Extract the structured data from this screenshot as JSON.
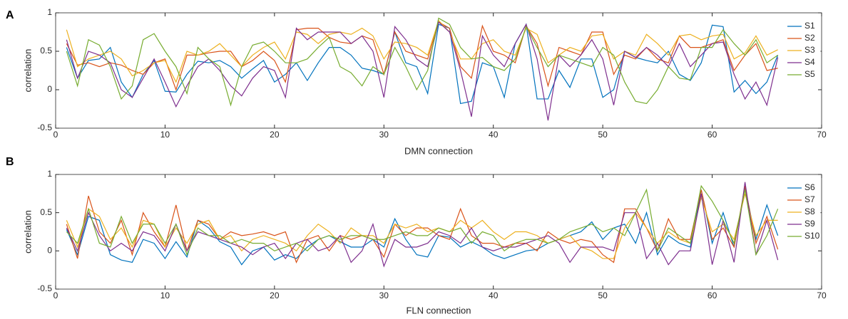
{
  "chart_data": [
    {
      "type": "line",
      "panel_label": "A",
      "xlabel": "DMN connection",
      "ylabel": "correlation",
      "xlim": [
        0,
        70
      ],
      "xticks": [
        0,
        10,
        20,
        30,
        40,
        50,
        60,
        70
      ],
      "ylim": [
        -0.5,
        1
      ],
      "yticks": [
        -0.5,
        0,
        0.5,
        1
      ],
      "legend": "right",
      "x": [
        1,
        2,
        3,
        4,
        5,
        6,
        7,
        8,
        9,
        10,
        11,
        12,
        13,
        14,
        15,
        16,
        17,
        18,
        19,
        20,
        21,
        22,
        23,
        24,
        25,
        26,
        27,
        28,
        29,
        30,
        31,
        32,
        33,
        34,
        35,
        36,
        37,
        38,
        39,
        40,
        41,
        42,
        43,
        44,
        45,
        46,
        47,
        48,
        49,
        50,
        51,
        52,
        53,
        54,
        55,
        56,
        57,
        58,
        59,
        60,
        61,
        62,
        63,
        64,
        65,
        66
      ],
      "series": [
        {
          "name": "S1",
          "color": "#0072BD",
          "values": [
            0.55,
            0.15,
            0.38,
            0.4,
            0.55,
            0.1,
            -0.1,
            0.2,
            0.38,
            -0.02,
            -0.03,
            0.2,
            0.37,
            0.35,
            0.38,
            0.3,
            0.15,
            0.27,
            0.38,
            0.1,
            0.2,
            0.35,
            0.12,
            0.35,
            0.55,
            0.55,
            0.45,
            0.28,
            0.25,
            0.2,
            0.75,
            0.35,
            0.3,
            -0.05,
            0.85,
            0.8,
            -0.18,
            -0.15,
            0.35,
            0.3,
            -0.1,
            0.6,
            0.85,
            -0.12,
            -0.12,
            0.25,
            0.03,
            0.4,
            0.4,
            -0.1,
            0.0,
            0.5,
            0.42,
            0.38,
            0.35,
            0.5,
            0.2,
            0.12,
            0.35,
            0.84,
            0.82,
            -0.03,
            0.12,
            -0.05,
            0.1,
            0.45
          ]
        },
        {
          "name": "S2",
          "color": "#D95319",
          "values": [
            0.6,
            0.32,
            0.35,
            0.3,
            0.35,
            0.32,
            0.25,
            0.2,
            0.35,
            0.4,
            0.0,
            0.45,
            0.45,
            0.48,
            0.5,
            0.5,
            0.3,
            0.38,
            0.5,
            0.38,
            0.1,
            0.78,
            0.8,
            0.8,
            0.68,
            0.62,
            0.6,
            0.7,
            0.65,
            0.2,
            0.75,
            0.5,
            0.45,
            0.4,
            0.88,
            0.8,
            0.3,
            0.15,
            0.83,
            0.5,
            0.45,
            0.35,
            0.83,
            0.6,
            0.05,
            0.55,
            0.5,
            0.45,
            0.75,
            0.75,
            0.2,
            0.45,
            0.4,
            0.55,
            0.4,
            0.35,
            0.7,
            0.55,
            0.55,
            0.6,
            0.65,
            0.25,
            0.45,
            0.6,
            0.25,
            0.28
          ]
        },
        {
          "name": "S3",
          "color": "#EDB120",
          "values": [
            0.78,
            0.3,
            0.4,
            0.45,
            0.5,
            0.4,
            0.18,
            0.25,
            0.35,
            0.38,
            0.1,
            0.5,
            0.45,
            0.5,
            0.6,
            0.45,
            0.3,
            0.45,
            0.55,
            0.62,
            0.4,
            0.75,
            0.72,
            0.6,
            0.72,
            0.75,
            0.72,
            0.8,
            0.7,
            0.4,
            0.62,
            0.6,
            0.55,
            0.45,
            0.9,
            0.75,
            0.4,
            0.4,
            0.6,
            0.65,
            0.5,
            0.45,
            0.8,
            0.72,
            0.35,
            0.45,
            0.55,
            0.5,
            0.7,
            0.72,
            0.4,
            0.5,
            0.45,
            0.72,
            0.6,
            0.45,
            0.7,
            0.72,
            0.65,
            0.7,
            0.72,
            0.4,
            0.48,
            0.7,
            0.45,
            0.52
          ]
        },
        {
          "name": "S4",
          "color": "#7E2F8E",
          "values": [
            0.65,
            0.15,
            0.5,
            0.45,
            0.35,
            0.0,
            -0.1,
            0.15,
            0.4,
            0.1,
            -0.22,
            0.05,
            0.3,
            0.4,
            0.25,
            0.05,
            -0.08,
            0.15,
            0.3,
            0.25,
            -0.1,
            0.8,
            0.65,
            0.75,
            0.75,
            0.75,
            0.6,
            0.7,
            0.5,
            -0.1,
            0.82,
            0.65,
            0.4,
            0.3,
            0.88,
            0.75,
            0.25,
            -0.35,
            0.7,
            0.45,
            0.3,
            0.6,
            0.85,
            0.4,
            -0.4,
            0.45,
            0.3,
            0.45,
            0.65,
            0.4,
            -0.2,
            0.5,
            0.42,
            0.55,
            0.45,
            0.3,
            0.6,
            0.3,
            0.45,
            0.6,
            0.62,
            0.2,
            -0.12,
            0.1,
            -0.2,
            0.42
          ]
        },
        {
          "name": "S5",
          "color": "#77AC30",
          "values": [
            0.5,
            0.05,
            0.65,
            0.58,
            0.3,
            -0.12,
            0.05,
            0.65,
            0.73,
            0.5,
            0.3,
            -0.05,
            0.55,
            0.4,
            0.3,
            -0.2,
            0.3,
            0.58,
            0.62,
            0.5,
            0.35,
            0.35,
            0.4,
            0.55,
            0.68,
            0.3,
            0.22,
            0.05,
            0.3,
            0.2,
            0.55,
            0.3,
            0.0,
            0.25,
            0.93,
            0.85,
            0.55,
            0.4,
            0.42,
            0.3,
            0.25,
            0.4,
            0.82,
            0.55,
            0.3,
            0.45,
            0.4,
            0.35,
            0.3,
            0.55,
            0.45,
            0.1,
            -0.15,
            -0.18,
            0.0,
            0.3,
            0.15,
            0.13,
            0.55,
            0.55,
            0.78,
            0.6,
            0.45,
            0.65,
            0.35,
            0.45
          ]
        }
      ]
    },
    {
      "type": "line",
      "panel_label": "B",
      "xlabel": "FLN connection",
      "ylabel": "correlation",
      "xlim": [
        0,
        70
      ],
      "xticks": [
        0,
        10,
        20,
        30,
        40,
        50,
        60,
        70
      ],
      "ylim": [
        -0.5,
        1
      ],
      "yticks": [
        -0.5,
        0,
        0.5,
        1
      ],
      "legend": "right",
      "x": [
        1,
        2,
        3,
        4,
        5,
        6,
        7,
        8,
        9,
        10,
        11,
        12,
        13,
        14,
        15,
        16,
        17,
        18,
        19,
        20,
        21,
        22,
        23,
        24,
        25,
        26,
        27,
        28,
        29,
        30,
        31,
        32,
        33,
        34,
        35,
        36,
        37,
        38,
        39,
        40,
        41,
        42,
        43,
        44,
        45,
        46,
        47,
        48,
        49,
        50,
        51,
        52,
        53,
        54,
        55,
        56,
        57,
        58,
        59,
        60,
        61,
        62,
        63,
        64,
        65,
        66
      ],
      "series": [
        {
          "name": "S6",
          "color": "#0072BD",
          "values": [
            0.28,
            -0.05,
            0.45,
            0.4,
            -0.05,
            -0.12,
            -0.15,
            0.15,
            0.1,
            -0.1,
            0.12,
            -0.08,
            0.4,
            0.3,
            0.12,
            0.05,
            -0.18,
            0.0,
            0.05,
            -0.12,
            -0.05,
            -0.1,
            0.05,
            0.15,
            0.2,
            0.12,
            0.05,
            0.05,
            0.15,
            0.05,
            0.42,
            0.15,
            -0.05,
            -0.08,
            0.2,
            0.18,
            0.05,
            0.12,
            0.05,
            -0.05,
            -0.1,
            -0.05,
            0.0,
            0.02,
            0.1,
            0.15,
            0.2,
            0.25,
            0.38,
            0.15,
            0.3,
            0.35,
            0.1,
            0.5,
            -0.05,
            0.2,
            0.1,
            0.05,
            0.8,
            0.1,
            0.5,
            0.05,
            0.82,
            0.15,
            0.6,
            0.2
          ]
        },
        {
          "name": "S7",
          "color": "#D95319",
          "values": [
            0.35,
            -0.1,
            0.72,
            0.25,
            0.1,
            0.4,
            -0.05,
            0.5,
            0.25,
            0.05,
            0.6,
            0.0,
            0.4,
            0.35,
            0.15,
            0.25,
            0.2,
            0.22,
            0.25,
            0.2,
            0.25,
            -0.15,
            0.15,
            0.2,
            0.0,
            0.2,
            0.15,
            0.2,
            0.15,
            -0.08,
            0.35,
            0.2,
            0.3,
            0.3,
            0.2,
            0.15,
            0.55,
            0.2,
            0.1,
            0.1,
            0.05,
            0.1,
            0.1,
            0.0,
            0.25,
            0.15,
            0.1,
            0.15,
            0.12,
            -0.05,
            -0.15,
            0.55,
            0.55,
            0.3,
            0.0,
            0.42,
            0.15,
            0.15,
            0.8,
            0.15,
            0.3,
            0.05,
            0.85,
            0.1,
            0.45,
            0.02
          ]
        },
        {
          "name": "S8",
          "color": "#EDB120",
          "values": [
            0.4,
            0.05,
            0.55,
            0.45,
            0.15,
            0.3,
            0.05,
            0.4,
            0.35,
            0.05,
            0.3,
            0.1,
            0.35,
            0.4,
            0.15,
            0.2,
            0.0,
            0.15,
            0.2,
            0.15,
            0.1,
            0.0,
            0.2,
            0.35,
            0.25,
            0.1,
            0.3,
            0.2,
            0.2,
            0.1,
            0.35,
            0.3,
            0.35,
            0.25,
            0.3,
            0.25,
            0.4,
            0.3,
            0.4,
            0.25,
            0.15,
            0.25,
            0.25,
            0.2,
            0.1,
            0.15,
            0.2,
            0.05,
            0.0,
            -0.1,
            -0.1,
            0.3,
            0.5,
            0.3,
            0.1,
            0.25,
            0.15,
            0.1,
            0.7,
            0.25,
            0.35,
            0.15,
            0.75,
            0.2,
            0.4,
            0.4
          ]
        },
        {
          "name": "S9",
          "color": "#7E2F8E",
          "values": [
            0.3,
            0.0,
            0.5,
            0.2,
            0.0,
            0.1,
            0.0,
            0.25,
            0.2,
            0.0,
            0.35,
            0.0,
            0.25,
            0.2,
            0.15,
            0.1,
            0.05,
            -0.05,
            0.05,
            0.1,
            -0.1,
            0.1,
            0.15,
            0.0,
            0.05,
            0.2,
            -0.15,
            0.0,
            0.35,
            -0.2,
            0.15,
            0.05,
            0.05,
            0.1,
            0.25,
            0.2,
            0.1,
            0.3,
            0.05,
            0.0,
            0.05,
            0.05,
            0.1,
            0.15,
            0.2,
            0.1,
            -0.15,
            0.05,
            0.05,
            0.05,
            0.0,
            0.5,
            0.5,
            -0.1,
            0.1,
            -0.18,
            0.0,
            0.0,
            0.75,
            -0.18,
            0.4,
            -0.15,
            0.9,
            -0.05,
            0.4,
            -0.12
          ]
        },
        {
          "name": "S10",
          "color": "#77AC30",
          "values": [
            0.25,
            0.1,
            0.55,
            0.1,
            0.05,
            0.45,
            0.1,
            0.35,
            0.35,
            0.1,
            0.35,
            -0.05,
            0.3,
            0.2,
            0.2,
            0.1,
            0.15,
            0.1,
            0.1,
            0.0,
            0.05,
            0.1,
            0.0,
            0.15,
            0.2,
            0.15,
            0.2,
            0.2,
            0.15,
            0.15,
            0.2,
            0.25,
            0.2,
            0.2,
            0.3,
            0.25,
            0.3,
            0.1,
            0.25,
            0.2,
            0.0,
            0.1,
            0.15,
            0.15,
            0.1,
            0.15,
            0.25,
            0.3,
            0.35,
            0.25,
            0.3,
            0.2,
            0.5,
            0.8,
            0.0,
            0.3,
            0.2,
            0.1,
            0.85,
            0.65,
            0.4,
            0.1,
            0.8,
            -0.05,
            0.2,
            0.55
          ]
        }
      ]
    }
  ]
}
